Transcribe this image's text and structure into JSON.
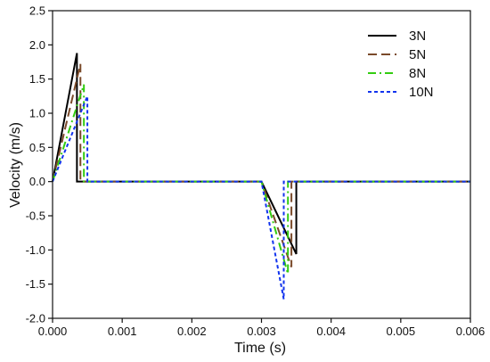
{
  "chart_data": {
    "type": "line",
    "xlabel": "Time (s)",
    "ylabel": "Velocity (m/s)",
    "xlim": [
      0.0,
      0.006
    ],
    "ylim": [
      -2.0,
      2.5
    ],
    "x_ticks": [
      0.0,
      0.001,
      0.002,
      0.003,
      0.004,
      0.005,
      0.006
    ],
    "x_tick_labels": [
      "0.000",
      "0.001",
      "0.002",
      "0.003",
      "0.004",
      "0.005",
      "0.006"
    ],
    "y_ticks": [
      -2.0,
      -1.5,
      -1.0,
      -0.5,
      0.0,
      0.5,
      1.0,
      1.5,
      2.0,
      2.5
    ],
    "y_tick_labels": [
      "-2.0",
      "-1.5",
      "-1.0",
      "-0.5",
      "0.0",
      "0.5",
      "1.0",
      "1.5",
      "2.0",
      "2.5"
    ],
    "grid": false,
    "legend_position": "top-right",
    "series": [
      {
        "name": "3N",
        "color": "#000000",
        "dash": "solid",
        "points": [
          [
            0.0,
            0.0
          ],
          [
            0.00035,
            1.88
          ],
          [
            0.00035,
            0.0
          ],
          [
            0.003,
            0.0
          ],
          [
            0.0035,
            -1.06
          ],
          [
            0.0035,
            0.0
          ],
          [
            0.006,
            0.0
          ]
        ]
      },
      {
        "name": "5N",
        "color": "#7a4a2a",
        "dash": "long-dash",
        "points": [
          [
            0.0,
            0.0
          ],
          [
            0.0004,
            1.72
          ],
          [
            0.0004,
            0.0
          ],
          [
            0.003,
            0.0
          ],
          [
            0.00343,
            -1.25
          ],
          [
            0.00343,
            0.0
          ],
          [
            0.006,
            0.0
          ]
        ]
      },
      {
        "name": "8N",
        "color": "#33cc11",
        "dash": "dash-dot",
        "points": [
          [
            0.0,
            0.0
          ],
          [
            0.00045,
            1.42
          ],
          [
            0.00045,
            0.0
          ],
          [
            0.003,
            0.0
          ],
          [
            0.00338,
            -1.35
          ],
          [
            0.00338,
            0.0
          ],
          [
            0.006,
            0.0
          ]
        ]
      },
      {
        "name": "10N",
        "color": "#1133ee",
        "dash": "short-dash",
        "points": [
          [
            0.0,
            0.0
          ],
          [
            0.0005,
            1.25
          ],
          [
            0.0005,
            0.0
          ],
          [
            0.003,
            0.0
          ],
          [
            0.00332,
            -1.72
          ],
          [
            0.00332,
            0.0
          ],
          [
            0.006,
            0.0
          ]
        ]
      }
    ]
  }
}
